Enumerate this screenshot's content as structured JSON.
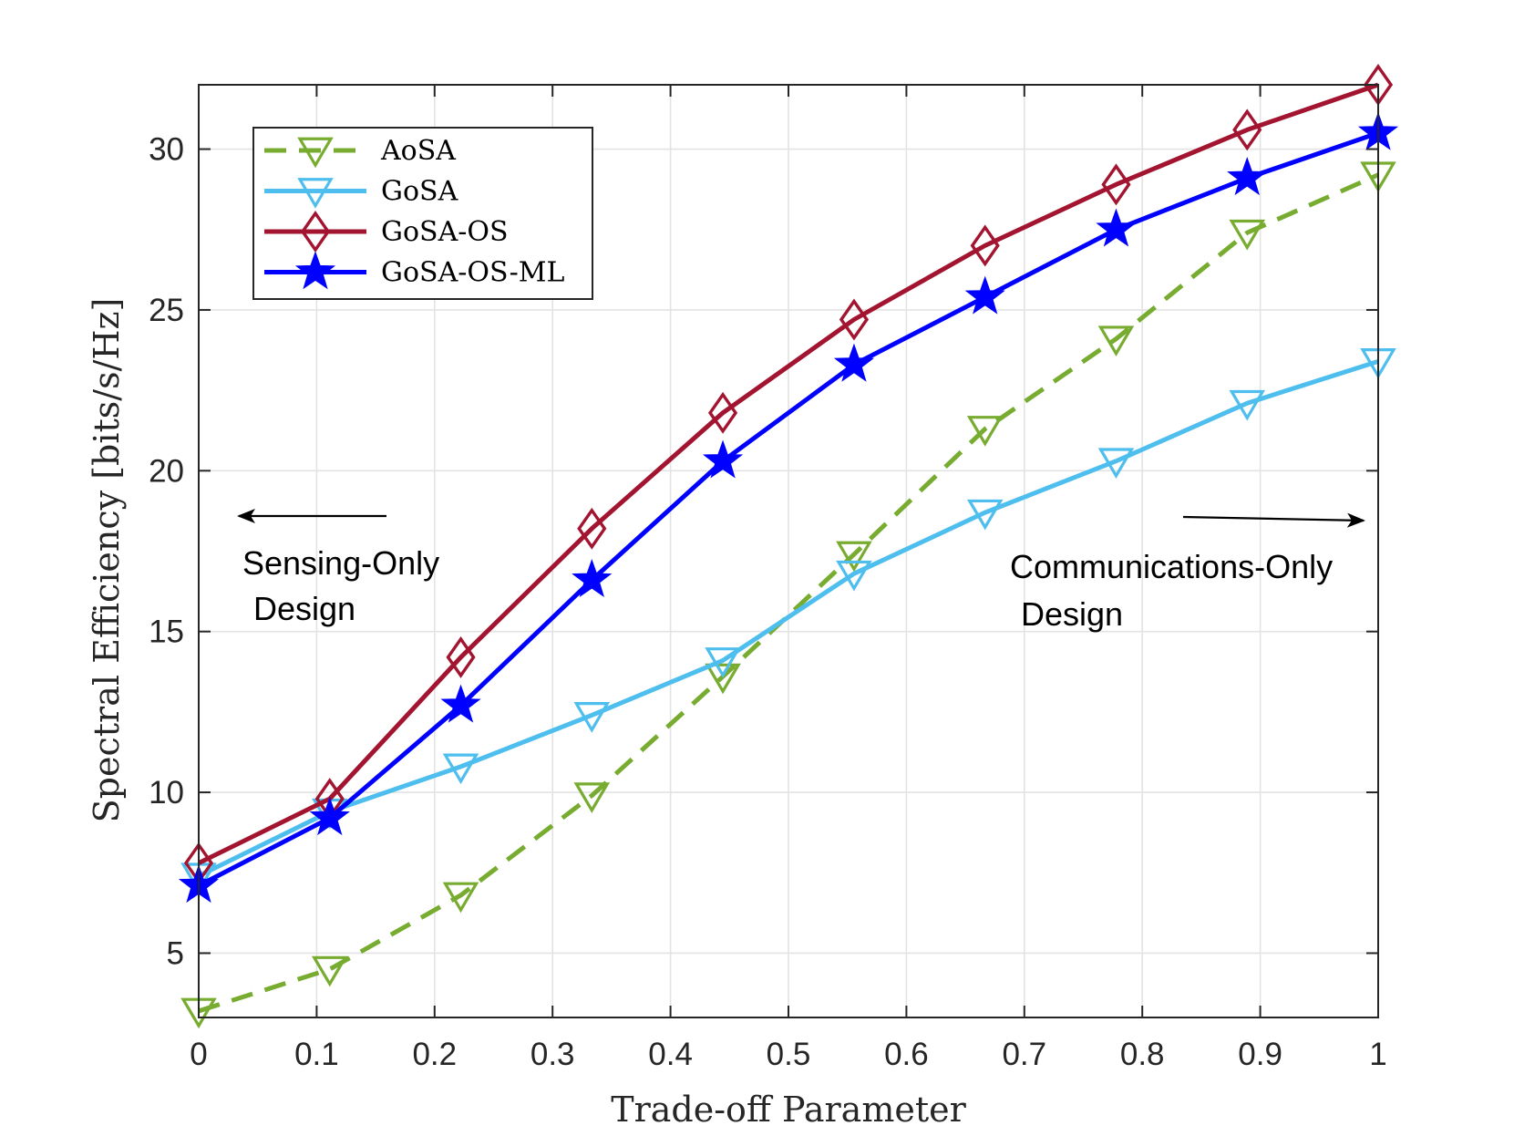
{
  "chart_data": {
    "type": "line",
    "title": "",
    "xlabel": "Trade-off Parameter",
    "ylabel": "Spectral Efficiency [bits/s/Hz]",
    "xlim": [
      0,
      1
    ],
    "ylim": [
      3,
      32
    ],
    "xticks": [
      0,
      0.1,
      0.2,
      0.3,
      0.4,
      0.5,
      0.6,
      0.7,
      0.8,
      0.9,
      1
    ],
    "xtick_labels": [
      "0",
      "0.1",
      "0.2",
      "0.3",
      "0.4",
      "0.5",
      "0.6",
      "0.7",
      "0.8",
      "0.9",
      "1"
    ],
    "yticks": [
      5,
      10,
      15,
      20,
      25,
      30
    ],
    "ytick_labels": [
      "5",
      "10",
      "15",
      "20",
      "25",
      "30"
    ],
    "grid": true,
    "legend_position": "top-left",
    "x": [
      0,
      0.1111,
      0.2222,
      0.3333,
      0.4444,
      0.5556,
      0.6667,
      0.7778,
      0.8889,
      1.0
    ],
    "series": [
      {
        "name": "AoSA",
        "color": "#77AC30",
        "line_style": "dashed",
        "marker": "triangle-down",
        "values": [
          3.2,
          4.5,
          6.8,
          9.9,
          13.6,
          17.4,
          21.3,
          24.1,
          27.4,
          29.2
        ]
      },
      {
        "name": "GoSA",
        "color": "#4DBEEE",
        "line_style": "solid",
        "marker": "triangle-down",
        "values": [
          7.4,
          9.4,
          10.8,
          12.4,
          14.1,
          16.8,
          18.7,
          20.3,
          22.1,
          23.4
        ]
      },
      {
        "name": "GoSA-OS",
        "color": "#A2142F",
        "line_style": "solid",
        "marker": "diamond",
        "values": [
          7.8,
          9.8,
          14.2,
          18.2,
          21.8,
          24.7,
          27.0,
          28.9,
          30.6,
          32.0
        ]
      },
      {
        "name": "GoSA-OS-ML",
        "color": "#0000FF",
        "line_style": "solid",
        "marker": "star",
        "values": [
          7.1,
          9.2,
          12.7,
          16.6,
          20.3,
          23.3,
          25.4,
          27.5,
          29.1,
          30.5
        ]
      }
    ],
    "annotations": [
      {
        "id": "left",
        "lines": [
          "Sensing-Only",
          "Design"
        ],
        "arrow": "left"
      },
      {
        "id": "right",
        "lines": [
          "Communications-Only",
          "Design"
        ],
        "arrow": "right"
      }
    ]
  }
}
